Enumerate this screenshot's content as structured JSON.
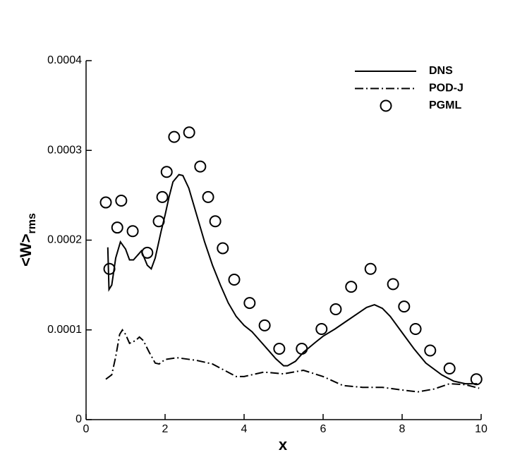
{
  "chart_data": {
    "type": "line",
    "xlabel": "x",
    "ylabel": "<W>",
    "ylabel_sub": "rms",
    "xlim": [
      0,
      10
    ],
    "xticks": [
      0,
      2,
      4,
      6,
      8,
      10
    ],
    "ylim": [
      0,
      0.0004
    ],
    "yticks": [
      0,
      0.0001,
      0.0002,
      0.0003,
      0.0004
    ],
    "legend": "upper right",
    "series": [
      {
        "name": "DNS",
        "color": "#000000",
        "style": "solid",
        "x": [
          0.55,
          0.58,
          0.65,
          0.75,
          0.87,
          1.0,
          1.1,
          1.2,
          1.4,
          1.55,
          1.65,
          1.75,
          1.9,
          2.0,
          2.1,
          2.2,
          2.35,
          2.45,
          2.6,
          2.8,
          3.0,
          3.2,
          3.4,
          3.6,
          3.8,
          4.0,
          4.2,
          4.4,
          4.6,
          4.8,
          5.0,
          5.1,
          5.3,
          5.5,
          5.8,
          6.0,
          6.3,
          6.6,
          6.9,
          7.1,
          7.3,
          7.5,
          7.7,
          8.0,
          8.3,
          8.6,
          9.0,
          9.3,
          9.6,
          9.9
        ],
        "values": [
          0.000192,
          0.000145,
          0.00015,
          0.00018,
          0.000198,
          0.00019,
          0.000178,
          0.000178,
          0.000188,
          0.000172,
          0.000168,
          0.00018,
          0.00021,
          0.000228,
          0.000248,
          0.000265,
          0.000273,
          0.000272,
          0.000258,
          0.000228,
          0.000198,
          0.000172,
          0.00015,
          0.00013,
          0.000115,
          0.000105,
          9.8e-05,
          8.8e-05,
          7.8e-05,
          6.8e-05,
          6e-05,
          6e-05,
          6.5e-05,
          7.5e-05,
          8.6e-05,
          9.3e-05,
          0.000101,
          0.00011,
          0.000119,
          0.000125,
          0.000128,
          0.000124,
          0.000115,
          9.7e-05,
          7.9e-05,
          6.3e-05,
          5e-05,
          4.3e-05,
          4e-05,
          4e-05
        ]
      },
      {
        "name": "POD-J",
        "color": "#000000",
        "style": "dashdot",
        "x": [
          0.5,
          0.65,
          0.75,
          0.85,
          0.92,
          1.0,
          1.1,
          1.25,
          1.35,
          1.45,
          1.6,
          1.75,
          1.85,
          2.0,
          2.3,
          2.8,
          3.2,
          3.5,
          3.8,
          4.0,
          4.5,
          5.0,
          5.5,
          6.0,
          6.5,
          7.0,
          7.5,
          8.0,
          8.4,
          8.8,
          9.2,
          9.6,
          9.95
        ],
        "values": [
          4.5e-05,
          5e-05,
          7e-05,
          9.5e-05,
          0.0001,
          9.5e-05,
          8.5e-05,
          8.8e-05,
          9.2e-05,
          8.8e-05,
          7.5e-05,
          6.3e-05,
          6.2e-05,
          6.7e-05,
          6.9e-05,
          6.6e-05,
          6.2e-05,
          5.5e-05,
          4.8e-05,
          4.8e-05,
          5.3e-05,
          5.1e-05,
          5.5e-05,
          4.8e-05,
          3.8e-05,
          3.6e-05,
          3.6e-05,
          3.3e-05,
          3.1e-05,
          3.4e-05,
          4e-05,
          3.9e-05,
          3.5e-05
        ]
      },
      {
        "name": "PGML",
        "color": "#000000",
        "style": "open-circle",
        "x": [
          0.5,
          0.59,
          0.89,
          0.79,
          1.18,
          1.55,
          1.84,
          1.93,
          2.04,
          2.23,
          2.61,
          2.89,
          3.09,
          3.27,
          3.46,
          3.75,
          4.14,
          4.52,
          4.89,
          5.46,
          5.96,
          6.32,
          6.71,
          7.2,
          7.77,
          8.05,
          8.34,
          8.71,
          9.2,
          9.88
        ],
        "values": [
          0.000242,
          0.000168,
          0.000244,
          0.000214,
          0.00021,
          0.000186,
          0.000221,
          0.000248,
          0.000276,
          0.000315,
          0.00032,
          0.000282,
          0.000248,
          0.000221,
          0.000191,
          0.000156,
          0.00013,
          0.000105,
          7.9e-05,
          7.9e-05,
          0.000101,
          0.000123,
          0.000148,
          0.000168,
          0.000151,
          0.000126,
          0.000101,
          7.7e-05,
          5.7e-05,
          4.5e-05
        ]
      }
    ]
  }
}
